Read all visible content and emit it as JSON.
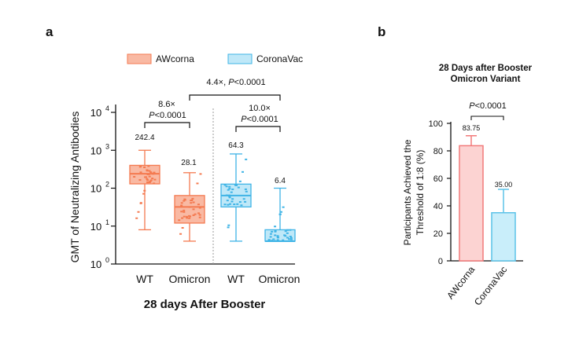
{
  "chart_data": [
    {
      "panel": "a",
      "type": "box",
      "y_scale": "log10",
      "ylim": [
        1,
        10000
      ],
      "ylabel": "GMT of Neutralizing Antibodies",
      "xlabel": "28 days After Booster",
      "categories": [
        "WT",
        "Omicron",
        "WT",
        "Omicron"
      ],
      "legend": {
        "position": "top",
        "entries": [
          "AWcorna",
          "CoronaVac"
        ]
      },
      "colors": {
        "AWcorna": "#f47a50",
        "CoronaVac": "#3fb4e6",
        "AWcorna_fill": "#f9b9a3",
        "CoronaVac_fill": "#bfe8f8"
      },
      "series": [
        {
          "name": "AWcorna",
          "groups": [
            {
              "category": "WT",
              "gmt": 242.4,
              "min": 8,
              "q1": 130,
              "median": 240,
              "q3": 400,
              "max": 1000
            },
            {
              "category": "Omicron",
              "gmt": 28.1,
              "min": 4,
              "q1": 12,
              "median": 32,
              "q3": 64,
              "max": 256
            }
          ]
        },
        {
          "name": "CoronaVac",
          "groups": [
            {
              "category": "WT",
              "gmt": 64.3,
              "min": 4,
              "q1": 32,
              "median": 64,
              "q3": 128,
              "max": 800
            },
            {
              "category": "Omicron",
              "gmt": 6.4,
              "min": 4,
              "q1": 4,
              "median": 4,
              "q3": 8,
              "max": 100
            }
          ]
        }
      ],
      "tick_labels": [
        "10",
        "10",
        "10",
        "10",
        "10"
      ],
      "tick_exponents": [
        "0",
        "1",
        "2",
        "3",
        "4"
      ],
      "gmt_labels": [
        "242.4",
        "28.1",
        "64.3",
        "6.4"
      ],
      "annotations": {
        "left_fold": "8.6×",
        "left_p_italic": "P",
        "left_p_rest": "<0.0001",
        "right_fold": "10.0×",
        "right_p_italic": "P",
        "right_p_rest": "<0.0001",
        "top_fold": "4.4×,",
        "top_p_italic": "P",
        "top_p_rest": "<0.0001"
      },
      "grid": false
    },
    {
      "panel": "b",
      "type": "bar",
      "title_line1": "28 Days after Booster",
      "title_line2": "Omicron Variant",
      "ylabel_line1": "Participants Achieved the",
      "ylabel_line2": "Threshold of 1:8 (%)",
      "ylim": [
        0,
        100
      ],
      "yticks": [
        "0",
        "20",
        "40",
        "60",
        "80",
        "100"
      ],
      "categories": [
        "AWcorna",
        "CoronaVac"
      ],
      "values": [
        83.75,
        35.0
      ],
      "error_upper": [
        91,
        52
      ],
      "value_labels": [
        "83.75",
        "35.00"
      ],
      "p_italic": "P",
      "p_rest": "<0.0001",
      "grid": false
    }
  ],
  "panel_labels": {
    "a": "a",
    "b": "b"
  }
}
